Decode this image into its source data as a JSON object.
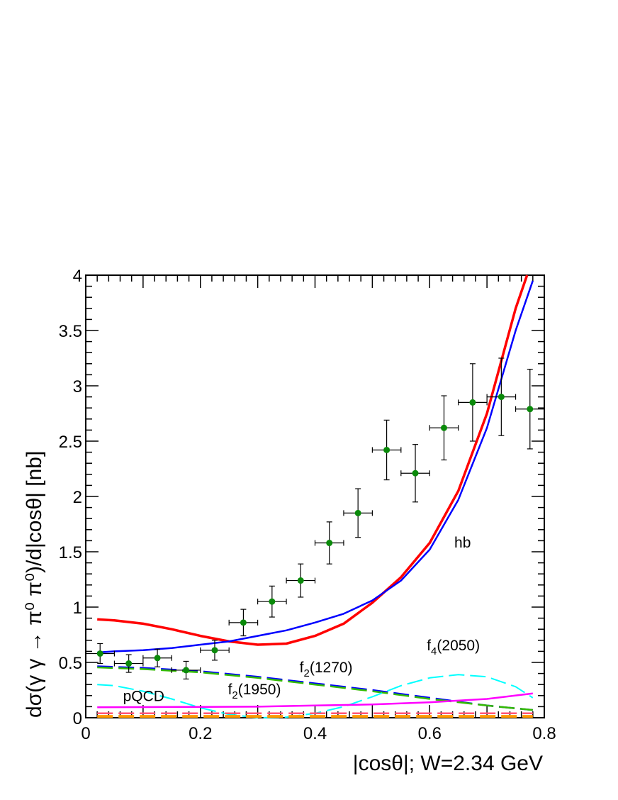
{
  "chart_data": {
    "type": "scatter",
    "title": "",
    "xlabel": "|cosθ|; W=2.34 GeV",
    "ylabel": "dσ(γ γ → π⁰ π⁰)/d|cosθ| [nb]",
    "xlim": [
      0,
      0.8
    ],
    "ylim": [
      0,
      4
    ],
    "x_ticks": [
      "0",
      "0.2",
      "0.4",
      "0.6",
      "0.8"
    ],
    "y_ticks": [
      "0",
      "0.5",
      "1",
      "1.5",
      "2",
      "2.5",
      "3",
      "3.5",
      "4"
    ],
    "grid": false,
    "legend": "none",
    "data_points": {
      "color": "#0a8a0a",
      "x": [
        0.025,
        0.075,
        0.125,
        0.175,
        0.225,
        0.275,
        0.325,
        0.375,
        0.425,
        0.475,
        0.525,
        0.575,
        0.625,
        0.675,
        0.725,
        0.775
      ],
      "y": [
        0.58,
        0.49,
        0.54,
        0.43,
        0.61,
        0.86,
        1.05,
        1.24,
        1.58,
        1.85,
        2.42,
        2.21,
        2.62,
        2.85,
        2.9,
        2.79
      ],
      "y_err": [
        0.09,
        0.08,
        0.08,
        0.08,
        0.09,
        0.12,
        0.14,
        0.15,
        0.19,
        0.22,
        0.27,
        0.26,
        0.29,
        0.35,
        0.35,
        0.36
      ],
      "x_err": 0.025
    },
    "series": [
      {
        "color": "#ff0000",
        "style": "solid",
        "width": 3.5,
        "x": [
          0.02,
          0.05,
          0.1,
          0.15,
          0.2,
          0.25,
          0.3,
          0.35,
          0.4,
          0.45,
          0.5,
          0.55,
          0.6,
          0.65,
          0.7,
          0.75,
          0.77
        ],
        "y": [
          0.89,
          0.88,
          0.85,
          0.8,
          0.74,
          0.69,
          0.66,
          0.67,
          0.74,
          0.85,
          1.04,
          1.27,
          1.58,
          2.05,
          2.75,
          3.7,
          4.0
        ]
      },
      {
        "color": "#0000ff",
        "style": "solid",
        "width": 2.5,
        "x": [
          0.02,
          0.05,
          0.1,
          0.15,
          0.2,
          0.25,
          0.3,
          0.35,
          0.4,
          0.45,
          0.5,
          0.55,
          0.6,
          0.65,
          0.7,
          0.75,
          0.78
        ],
        "y": [
          0.59,
          0.6,
          0.61,
          0.63,
          0.66,
          0.69,
          0.74,
          0.79,
          0.86,
          0.94,
          1.06,
          1.24,
          1.52,
          1.97,
          2.62,
          3.5,
          3.95
        ]
      },
      {
        "color": "#0000ff",
        "style": "dashed",
        "width": 2.5,
        "x": [
          0.02,
          0.1,
          0.2,
          0.3,
          0.4,
          0.5,
          0.6,
          0.7,
          0.78
        ],
        "y": [
          0.465,
          0.45,
          0.42,
          0.37,
          0.31,
          0.25,
          0.18,
          0.11,
          0.07
        ]
      },
      {
        "color": "#33bb00",
        "style": "dashed",
        "width": 2.5,
        "x": [
          0.02,
          0.1,
          0.2,
          0.3,
          0.4,
          0.5,
          0.6,
          0.7,
          0.78
        ],
        "y": [
          0.455,
          0.44,
          0.41,
          0.36,
          0.3,
          0.24,
          0.17,
          0.11,
          0.07
        ]
      },
      {
        "color": "#00ffff",
        "style": "dashed",
        "width": 2,
        "x": [
          0.02,
          0.05,
          0.1,
          0.15,
          0.2,
          0.25,
          0.3,
          0.35,
          0.4,
          0.45,
          0.5,
          0.55,
          0.6,
          0.65,
          0.7,
          0.75,
          0.78
        ],
        "y": [
          0.3,
          0.29,
          0.24,
          0.17,
          0.09,
          0.03,
          0.0,
          0.005,
          0.04,
          0.1,
          0.19,
          0.29,
          0.36,
          0.39,
          0.37,
          0.28,
          0.18
        ]
      },
      {
        "color": "#ff00ff",
        "style": "solid",
        "width": 2.5,
        "x": [
          0.02,
          0.1,
          0.2,
          0.3,
          0.4,
          0.5,
          0.6,
          0.7,
          0.78
        ],
        "y": [
          0.095,
          0.096,
          0.098,
          0.1,
          0.11,
          0.12,
          0.14,
          0.17,
          0.22
        ]
      },
      {
        "color": "#ff5577",
        "style": "dashed",
        "width": 2.5,
        "x": [
          0.02,
          0.78
        ],
        "y": [
          0.04,
          0.04
        ]
      },
      {
        "color": "#ff9900",
        "style": "dashed",
        "width": 4,
        "x": [
          0.02,
          0.78
        ],
        "y": [
          0.012,
          0.012
        ]
      }
    ],
    "annotations": [
      {
        "text": "hb",
        "x": 0.643,
        "y": 1.54
      },
      {
        "text": "f",
        "sub": "4",
        "tail": "(2050)",
        "x": 0.595,
        "y": 0.61
      },
      {
        "text": "f",
        "sub": "2",
        "tail": "(1270)",
        "x": 0.373,
        "y": 0.41
      },
      {
        "text": "f",
        "sub": "2",
        "tail": "(1950)",
        "x": 0.248,
        "y": 0.21
      },
      {
        "text": "pQCD",
        "x": 0.065,
        "y": 0.15
      }
    ]
  }
}
